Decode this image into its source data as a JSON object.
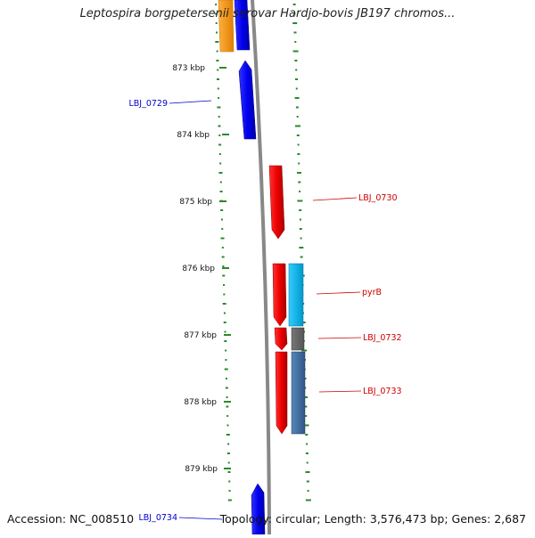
{
  "title": "Leptospira borgpetersenii serovar Hardjo-bovis JB197 chromos...",
  "footer": {
    "accession": "Accession: NC_008510",
    "summary": "Topology: circular; Length: 3,576,473 bp; Genes: 2,687"
  },
  "ticks": [
    {
      "label": "873 kbp",
      "kbp": 873
    },
    {
      "label": "874 kbp",
      "kbp": 874
    },
    {
      "label": "875 kbp",
      "kbp": 875
    },
    {
      "label": "876 kbp",
      "kbp": 876
    },
    {
      "label": "877 kbp",
      "kbp": 877
    },
    {
      "label": "878 kbp",
      "kbp": 878
    },
    {
      "label": "879 kbp",
      "kbp": 879
    }
  ],
  "gene_labels": [
    {
      "label": "LBJ_0729",
      "color": "#0000cc",
      "side": "left"
    },
    {
      "label": "LBJ_0730",
      "color": "#cc0000",
      "side": "right"
    },
    {
      "label": "pyrB",
      "color": "#cc0000",
      "side": "right"
    },
    {
      "label": "LBJ_0732",
      "color": "#cc0000",
      "side": "right"
    },
    {
      "label": "LBJ_0733",
      "color": "#cc0000",
      "side": "right"
    },
    {
      "label": "LBJ_0734",
      "color": "#0000cc",
      "side": "left"
    }
  ],
  "colors": {
    "reverse_strand": "#0000ee",
    "forward_strand": "#ee0000",
    "orange": "#ff9900",
    "light_blue": "#00bbee",
    "steel_blue": "#4477aa",
    "gray_box": "#666666",
    "backbone": "#888888",
    "skew_dots": "#2a8a2a"
  }
}
